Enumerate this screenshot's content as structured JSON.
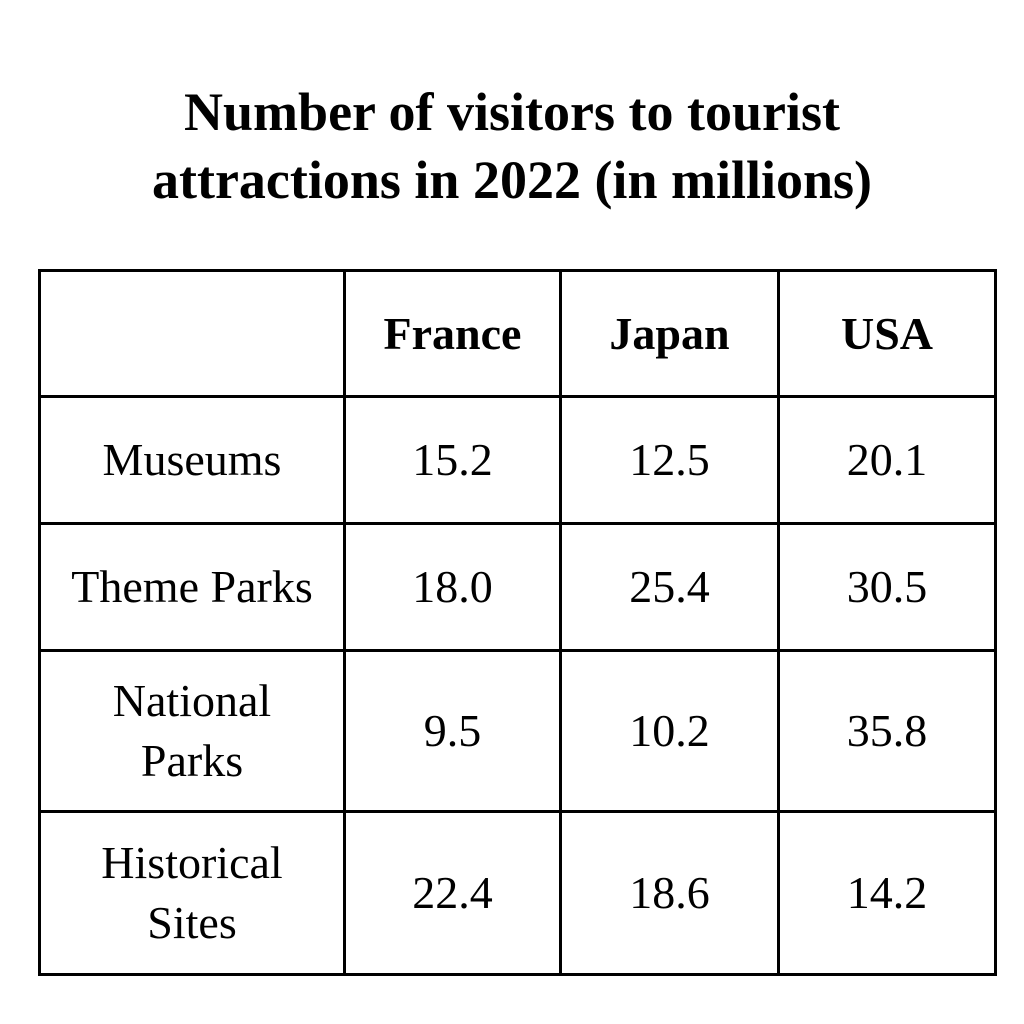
{
  "chart_data": {
    "type": "table",
    "title_lines": [
      "Number of visitors to tourist",
      "attractions in 2022 (in millions)"
    ],
    "corner_label": "",
    "columns": [
      "France",
      "Japan",
      "USA"
    ],
    "rows": [
      {
        "label_lines": [
          "Museums"
        ],
        "values": [
          "15.2",
          "12.5",
          "20.1"
        ]
      },
      {
        "label_lines": [
          "Theme Parks"
        ],
        "values": [
          "18.0",
          "25.4",
          "30.5"
        ]
      },
      {
        "label_lines": [
          "National",
          "Parks"
        ],
        "values": [
          "9.5",
          "10.2",
          "35.8"
        ]
      },
      {
        "label_lines": [
          "Historical",
          "Sites"
        ],
        "values": [
          "22.4",
          "18.6",
          "14.2"
        ]
      }
    ]
  }
}
